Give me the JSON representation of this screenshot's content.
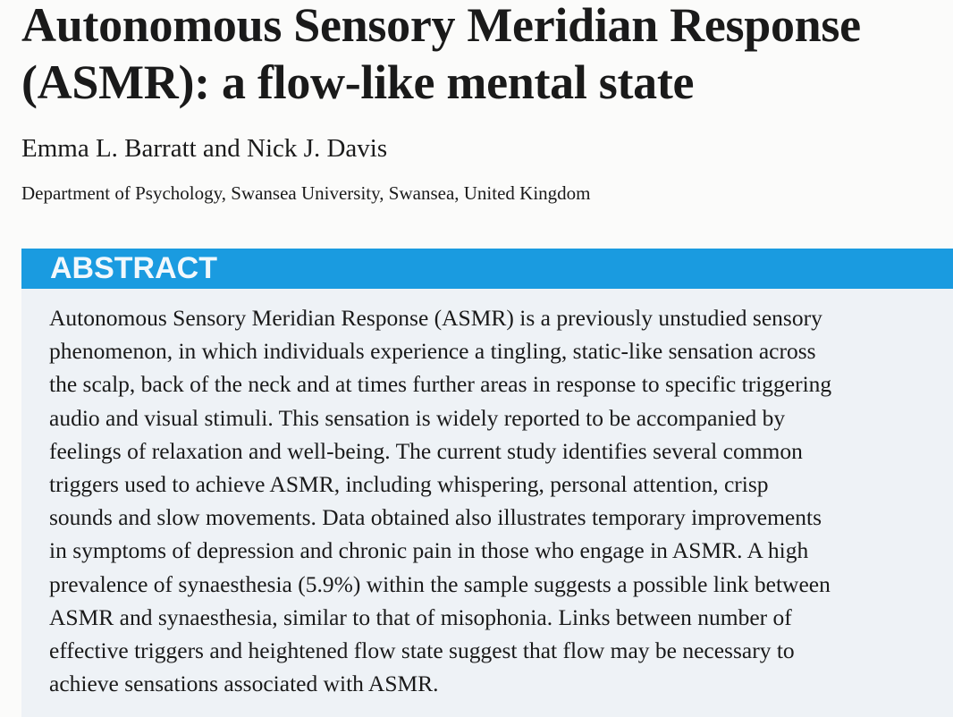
{
  "paper": {
    "title": "Autonomous Sensory Meridian Response (ASMR): a flow-like mental state",
    "authors": "Emma L. Barratt and Nick J. Davis",
    "affiliation": "Department of Psychology, Swansea University, Swansea, United Kingdom",
    "abstract_heading": "ABSTRACT",
    "abstract_lines": [
      "Autonomous Sensory Meridian Response (ASMR) is a previously unstudied sensory",
      "phenomenon, in which individuals experience a tingling, static-like sensation across",
      "the scalp, back of the neck and at times further areas in response to specific triggering",
      "audio and visual stimuli. This sensation is widely reported to be accompanied by",
      "feelings of relaxation and well-being. The current study identifies several common",
      "triggers used to achieve ASMR, including whispering, personal attention, crisp",
      "sounds and slow movements. Data obtained also illustrates temporary improvements",
      "in symptoms of depression and chronic pain in those who engage in ASMR. A high",
      "prevalence of synaesthesia (5.9%) within the sample suggests a possible link between",
      "ASMR and synaesthesia, similar to that of misophonia. Links between number of",
      "effective triggers and heightened flow state suggest that flow may be necessary to",
      "achieve sensations associated with ASMR."
    ]
  },
  "colors": {
    "abstract_bar": "#1a9be0",
    "abstract_background": "#eef2f6"
  }
}
